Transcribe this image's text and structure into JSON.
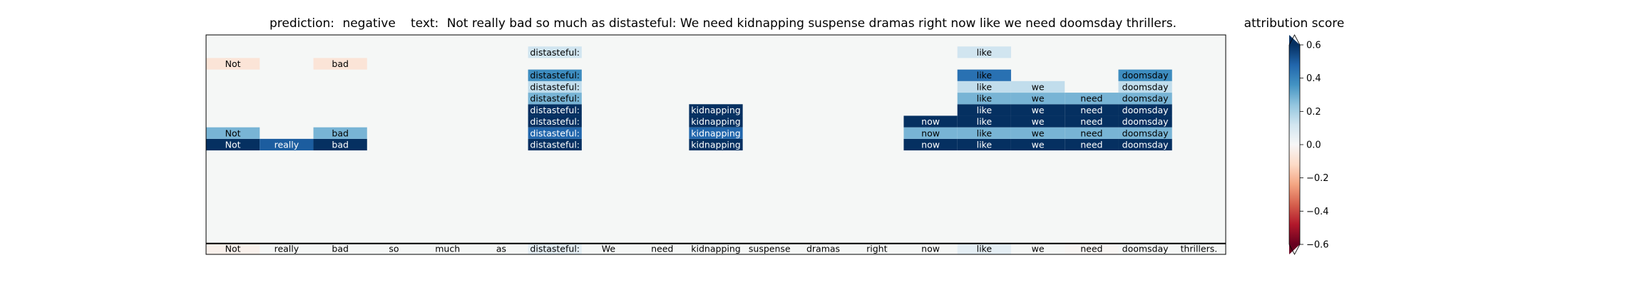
{
  "chart_data": {
    "type": "heatmap",
    "title": {
      "prediction_label": "prediction:",
      "prediction_value": "negative",
      "text_label": "text:",
      "text_value": "Not really bad so much as distasteful: We need kidnapping suspense dramas right now like we need doomsday thrillers."
    },
    "tokens": [
      "Not",
      "really",
      "bad",
      "so",
      "much",
      "as",
      "distasteful:",
      "We",
      "need",
      "kidnapping",
      "suspense",
      "dramas",
      "right",
      "now",
      "like",
      "we",
      "need",
      "doomsday",
      "thrillers."
    ],
    "input_row_scores": [
      -0.03,
      0,
      0,
      0,
      0,
      0,
      0.06,
      0,
      0,
      0,
      0,
      0,
      0,
      0,
      0.06,
      0,
      -0.01,
      0,
      0
    ],
    "rows": [
      {
        "scores": [
          0.62,
          0.5,
          0.62,
          null,
          null,
          null,
          0.6,
          null,
          null,
          0.6,
          null,
          null,
          null,
          0.6,
          0.6,
          0.6,
          0.6,
          0.6,
          null
        ]
      },
      {
        "scores": [
          0.28,
          null,
          0.28,
          null,
          null,
          null,
          0.48,
          null,
          null,
          0.48,
          null,
          null,
          null,
          0.28,
          0.28,
          0.28,
          0.28,
          0.28,
          null
        ]
      },
      {
        "scores": [
          null,
          null,
          null,
          null,
          null,
          null,
          0.8,
          null,
          null,
          0.8,
          null,
          null,
          null,
          0.8,
          0.8,
          0.8,
          0.8,
          0.8,
          null
        ]
      },
      {
        "scores": [
          null,
          null,
          null,
          null,
          null,
          null,
          0.6,
          null,
          null,
          0.6,
          null,
          null,
          null,
          null,
          0.6,
          0.6,
          0.6,
          0.6,
          null
        ]
      },
      {
        "scores": [
          null,
          null,
          null,
          null,
          null,
          null,
          0.28,
          null,
          null,
          null,
          null,
          null,
          null,
          null,
          0.28,
          0.28,
          0.28,
          0.28,
          null
        ]
      },
      {
        "scores": [
          null,
          null,
          null,
          null,
          null,
          null,
          0.15,
          null,
          null,
          null,
          null,
          null,
          null,
          null,
          0.15,
          0.15,
          null,
          0.15,
          null
        ]
      },
      {
        "scores": [
          null,
          null,
          null,
          null,
          null,
          null,
          0.38,
          null,
          null,
          null,
          null,
          null,
          null,
          null,
          0.45,
          null,
          null,
          0.38,
          null
        ]
      },
      {
        "scores": [
          -0.08,
          null,
          -0.08,
          null,
          null,
          null,
          null,
          null,
          null,
          null,
          null,
          null,
          null,
          null,
          null,
          null,
          null,
          null,
          null
        ]
      },
      {
        "scores": [
          null,
          null,
          null,
          null,
          null,
          null,
          0.12,
          null,
          null,
          null,
          null,
          null,
          null,
          null,
          0.12,
          null,
          null,
          null,
          null
        ]
      }
    ],
    "row_slots": [
      9,
      8,
      7,
      6,
      5,
      4,
      3,
      2,
      1
    ],
    "grid_rows": 19,
    "colorbar": {
      "label": "attribution score",
      "range": [
        -0.6,
        0.6
      ],
      "ticks": [
        {
          "value": 0.6,
          "label": "0.6"
        },
        {
          "value": 0.4,
          "label": "0.4"
        },
        {
          "value": 0.2,
          "label": "0.2"
        },
        {
          "value": 0.0,
          "label": "0.0"
        },
        {
          "value": -0.2,
          "label": "−0.2"
        },
        {
          "value": -0.4,
          "label": "−0.4"
        },
        {
          "value": -0.6,
          "label": "−0.6"
        }
      ],
      "extend": "both"
    },
    "colormap": "RdBu",
    "background_color": "#f5f7f6",
    "grid": false
  }
}
